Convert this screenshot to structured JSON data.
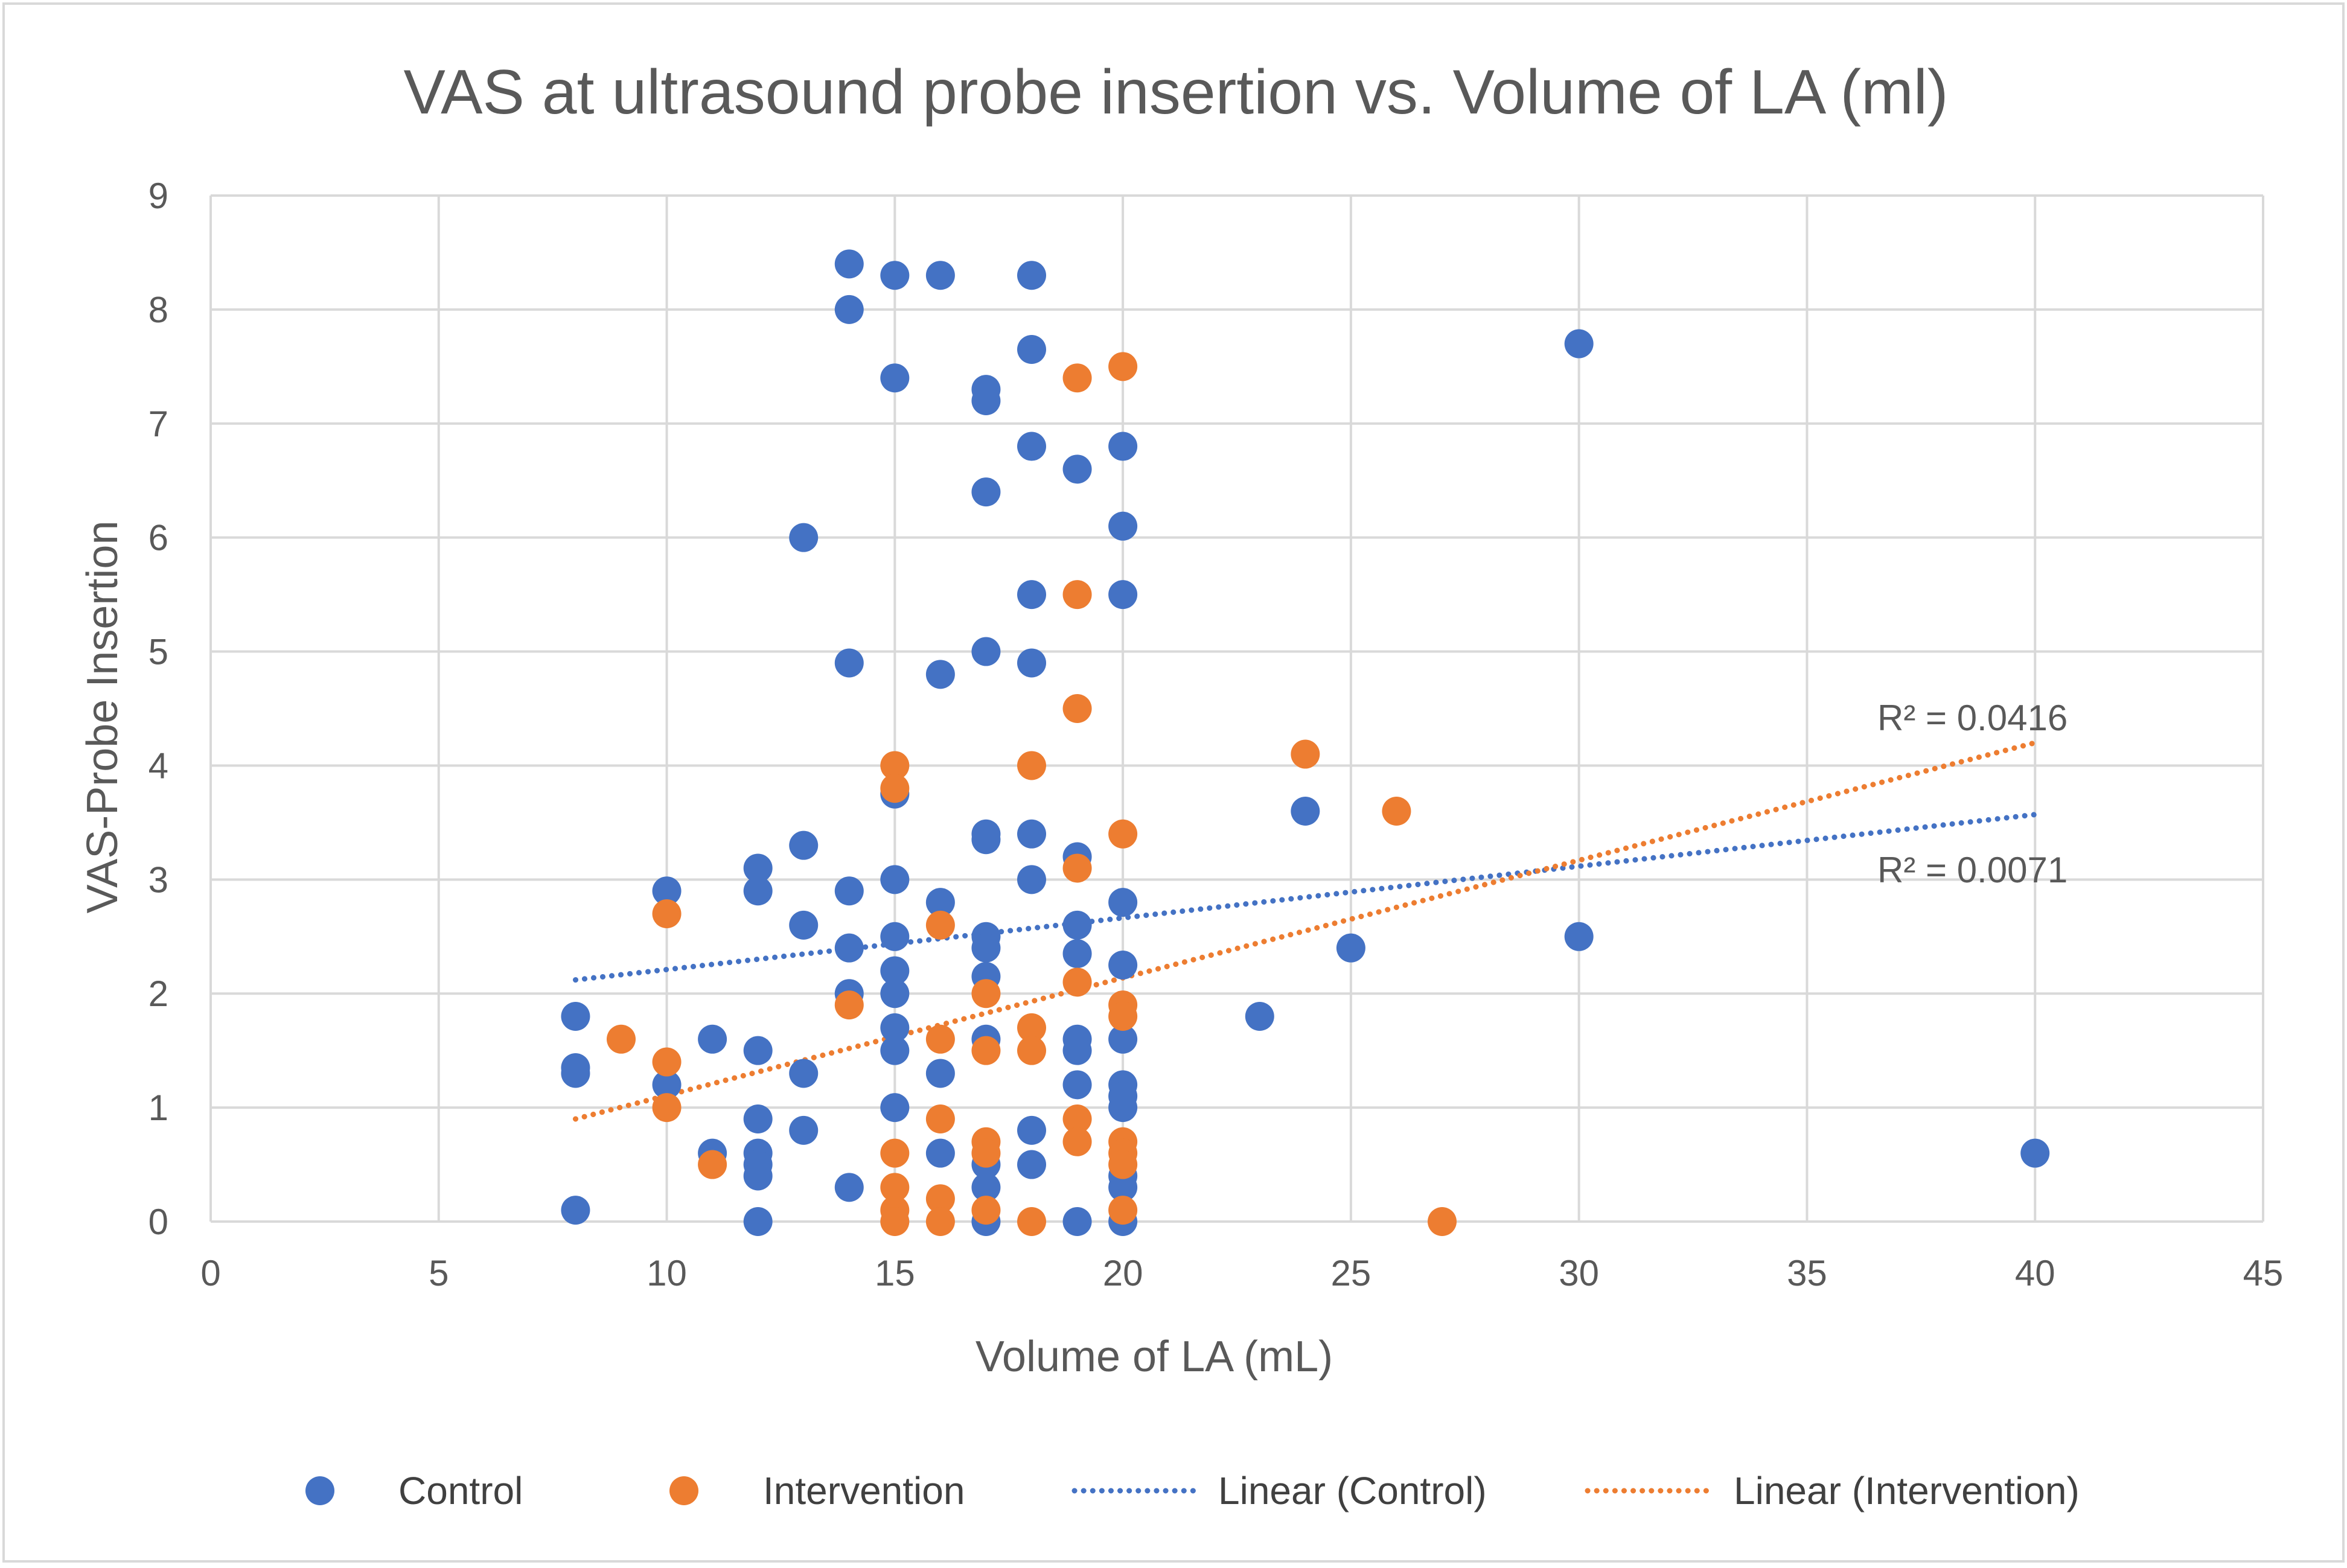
{
  "chart_data": {
    "type": "scatter",
    "title": "VAS at ultrasound probe insertion vs. Volume of LA (ml)",
    "xlabel": "Volume of LA (mL)",
    "ylabel": "VAS-Probe Insertion",
    "xlim": [
      0,
      45
    ],
    "ylim": [
      0,
      9
    ],
    "xticks": [
      0,
      5,
      10,
      15,
      20,
      25,
      30,
      35,
      40,
      45
    ],
    "yticks": [
      0,
      1,
      2,
      3,
      4,
      5,
      6,
      7,
      8,
      9
    ],
    "grid": true,
    "legend_position": "bottom",
    "colors": {
      "control": "#4472C4",
      "intervention": "#ED7D31",
      "grid": "#D9D9D9",
      "text": "#595959"
    },
    "series": [
      {
        "name": "Control",
        "color": "#4472C4",
        "points": [
          [
            8,
            1.8
          ],
          [
            8,
            1.35
          ],
          [
            8,
            1.3
          ],
          [
            8,
            0.1
          ],
          [
            10,
            2.9
          ],
          [
            10,
            1.2
          ],
          [
            11,
            1.6
          ],
          [
            11,
            0.6
          ],
          [
            12,
            3.1
          ],
          [
            12,
            2.9
          ],
          [
            12,
            1.5
          ],
          [
            12,
            0.9
          ],
          [
            12,
            0.6
          ],
          [
            12,
            0.5
          ],
          [
            12,
            0.4
          ],
          [
            12,
            0
          ],
          [
            13,
            6.0
          ],
          [
            13,
            3.3
          ],
          [
            13,
            2.6
          ],
          [
            13,
            1.3
          ],
          [
            13,
            0.8
          ],
          [
            14,
            8.4
          ],
          [
            14,
            8.0
          ],
          [
            14,
            4.9
          ],
          [
            14,
            2.9
          ],
          [
            14,
            2.4
          ],
          [
            14,
            2.0
          ],
          [
            14,
            0.3
          ],
          [
            15,
            8.3
          ],
          [
            15,
            7.4
          ],
          [
            15,
            3.75
          ],
          [
            15,
            3.0
          ],
          [
            15,
            2.5
          ],
          [
            15,
            2.2
          ],
          [
            15,
            2.0
          ],
          [
            15,
            1.7
          ],
          [
            15,
            1.5
          ],
          [
            15,
            1.0
          ],
          [
            16,
            8.3
          ],
          [
            16,
            4.8
          ],
          [
            16,
            2.8
          ],
          [
            16,
            1.3
          ],
          [
            16,
            0.6
          ],
          [
            17,
            7.3
          ],
          [
            17,
            7.2
          ],
          [
            17,
            6.4
          ],
          [
            17,
            5.0
          ],
          [
            17,
            3.4
          ],
          [
            17,
            3.35
          ],
          [
            17,
            2.5
          ],
          [
            17,
            2.4
          ],
          [
            17,
            2.15
          ],
          [
            17,
            1.6
          ],
          [
            17,
            0.5
          ],
          [
            17,
            0.3
          ],
          [
            17,
            0
          ],
          [
            18,
            8.3
          ],
          [
            18,
            7.65
          ],
          [
            18,
            6.8
          ],
          [
            18,
            5.5
          ],
          [
            18,
            4.9
          ],
          [
            18,
            3.4
          ],
          [
            18,
            3.0
          ],
          [
            18,
            0.8
          ],
          [
            18,
            0.5
          ],
          [
            19,
            6.6
          ],
          [
            19,
            3.2
          ],
          [
            19,
            2.6
          ],
          [
            19,
            2.35
          ],
          [
            19,
            1.6
          ],
          [
            19,
            1.5
          ],
          [
            19,
            1.2
          ],
          [
            19,
            0
          ],
          [
            20,
            6.8
          ],
          [
            20,
            6.1
          ],
          [
            20,
            5.5
          ],
          [
            20,
            2.8
          ],
          [
            20,
            2.25
          ],
          [
            20,
            1.6
          ],
          [
            20,
            1.2
          ],
          [
            20,
            1.1
          ],
          [
            20,
            1.0
          ],
          [
            20,
            0.4
          ],
          [
            20,
            0.3
          ],
          [
            20,
            0
          ],
          [
            23,
            1.8
          ],
          [
            24,
            3.6
          ],
          [
            25,
            2.4
          ],
          [
            30,
            7.7
          ],
          [
            30,
            2.5
          ],
          [
            40,
            0.6
          ]
        ],
        "trendline": {
          "name": "Linear (Control)",
          "x_start": 8,
          "y_start": 2.12,
          "x_end": 40,
          "y_end": 3.57,
          "r_squared_label": "R² = 0.0071"
        }
      },
      {
        "name": "Intervention",
        "color": "#ED7D31",
        "points": [
          [
            9,
            1.6
          ],
          [
            10,
            2.7
          ],
          [
            10,
            1.4
          ],
          [
            10,
            1.0
          ],
          [
            11,
            0.5
          ],
          [
            14,
            1.9
          ],
          [
            15,
            4.0
          ],
          [
            15,
            3.8
          ],
          [
            15,
            0.6
          ],
          [
            15,
            0.3
          ],
          [
            15,
            0.1
          ],
          [
            15,
            0
          ],
          [
            16,
            2.6
          ],
          [
            16,
            1.6
          ],
          [
            16,
            0.9
          ],
          [
            16,
            0.2
          ],
          [
            16,
            0
          ],
          [
            17,
            2.0
          ],
          [
            17,
            1.5
          ],
          [
            17,
            0.7
          ],
          [
            17,
            0.6
          ],
          [
            17,
            0.1
          ],
          [
            18,
            4.0
          ],
          [
            18,
            1.7
          ],
          [
            18,
            1.5
          ],
          [
            18,
            0
          ],
          [
            19,
            7.4
          ],
          [
            19,
            5.5
          ],
          [
            19,
            4.5
          ],
          [
            19,
            3.1
          ],
          [
            19,
            2.1
          ],
          [
            19,
            0.9
          ],
          [
            19,
            0.7
          ],
          [
            20,
            7.5
          ],
          [
            20,
            3.4
          ],
          [
            20,
            1.9
          ],
          [
            20,
            1.8
          ],
          [
            20,
            0.7
          ],
          [
            20,
            0.6
          ],
          [
            20,
            0.5
          ],
          [
            20,
            0.1
          ],
          [
            24,
            4.1
          ],
          [
            26,
            3.6
          ],
          [
            27,
            0
          ]
        ],
        "trendline": {
          "name": "Linear (Intervention)",
          "x_start": 8,
          "y_start": 0.9,
          "x_end": 40,
          "y_end": 4.2,
          "r_squared_label": "R² = 0.0416"
        }
      }
    ]
  },
  "legend": {
    "items": [
      {
        "label": "Control",
        "kind": "marker",
        "color": "#4472C4"
      },
      {
        "label": "Intervention",
        "kind": "marker",
        "color": "#ED7D31"
      },
      {
        "label": "Linear (Control)",
        "kind": "dotted-line",
        "color": "#4472C4"
      },
      {
        "label": "Linear (Intervention)",
        "kind": "dotted-line",
        "color": "#ED7D31"
      }
    ]
  }
}
